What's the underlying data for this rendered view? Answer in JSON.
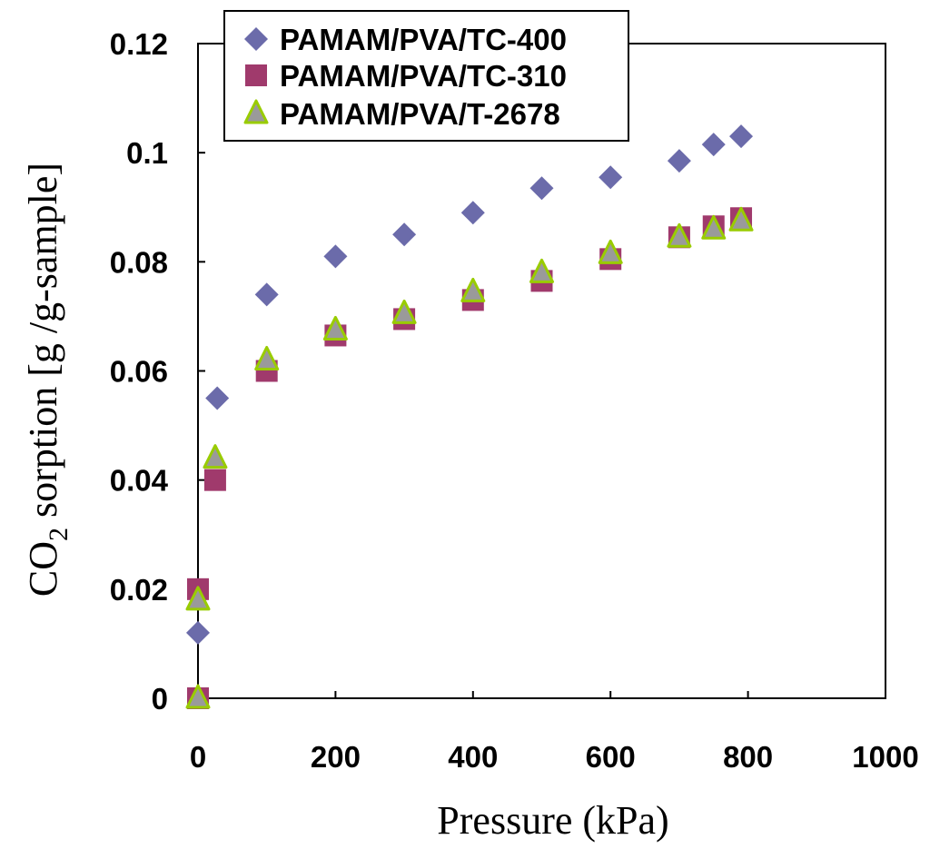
{
  "chart_data": {
    "type": "scatter",
    "title": "",
    "xlabel": "Pressure (kPa)",
    "ylabel": {
      "prefix": "CO",
      "subscript": "2",
      "suffix": " sorption [g /g-sample]"
    },
    "xlim": [
      0,
      1000
    ],
    "ylim": [
      0,
      0.12
    ],
    "xticks": [
      0,
      200,
      400,
      600,
      800,
      1000
    ],
    "xtick_labels": [
      "0",
      "200",
      "400",
      "600",
      "800",
      "1000"
    ],
    "yticks": [
      0,
      0.02,
      0.04,
      0.06,
      0.08,
      0.1,
      0.12
    ],
    "ytick_labels": [
      "0",
      "0.02",
      "0.04",
      "0.06",
      "0.08",
      "0.1",
      "0.12"
    ],
    "grid": false,
    "legend_position": "top-left",
    "series": [
      {
        "name": "PAMAM/PVA/TC-400",
        "marker": "diamond",
        "color": "#6B6BAA",
        "points": [
          {
            "x": 0,
            "y": 0.012
          },
          {
            "x": 28,
            "y": 0.055
          },
          {
            "x": 100,
            "y": 0.074
          },
          {
            "x": 200,
            "y": 0.081
          },
          {
            "x": 300,
            "y": 0.085
          },
          {
            "x": 400,
            "y": 0.089
          },
          {
            "x": 500,
            "y": 0.0935
          },
          {
            "x": 600,
            "y": 0.0955
          },
          {
            "x": 700,
            "y": 0.0985
          },
          {
            "x": 750,
            "y": 0.1015
          },
          {
            "x": 790,
            "y": 0.103
          }
        ]
      },
      {
        "name": "PAMAM/PVA/TC-310",
        "marker": "square",
        "color": "#A03A6C",
        "points": [
          {
            "x": 0,
            "y": 0.0
          },
          {
            "x": 0,
            "y": 0.02
          },
          {
            "x": 25,
            "y": 0.04
          },
          {
            "x": 100,
            "y": 0.06
          },
          {
            "x": 200,
            "y": 0.0665
          },
          {
            "x": 300,
            "y": 0.0695
          },
          {
            "x": 400,
            "y": 0.073
          },
          {
            "x": 500,
            "y": 0.0765
          },
          {
            "x": 600,
            "y": 0.0805
          },
          {
            "x": 700,
            "y": 0.0845
          },
          {
            "x": 750,
            "y": 0.0865
          },
          {
            "x": 790,
            "y": 0.088
          }
        ]
      },
      {
        "name": "PAMAM/PVA/T-2678",
        "marker": "triangle",
        "color": "#9A9A9A",
        "edge_color": "#99CC00",
        "points": [
          {
            "x": 0,
            "y": 0.0
          },
          {
            "x": 0,
            "y": 0.018
          },
          {
            "x": 25,
            "y": 0.044
          },
          {
            "x": 100,
            "y": 0.062
          },
          {
            "x": 200,
            "y": 0.0675
          },
          {
            "x": 300,
            "y": 0.0705
          },
          {
            "x": 400,
            "y": 0.0745
          },
          {
            "x": 500,
            "y": 0.078
          },
          {
            "x": 600,
            "y": 0.0815
          },
          {
            "x": 700,
            "y": 0.0845
          },
          {
            "x": 750,
            "y": 0.086
          },
          {
            "x": 790,
            "y": 0.0875
          }
        ]
      }
    ]
  }
}
